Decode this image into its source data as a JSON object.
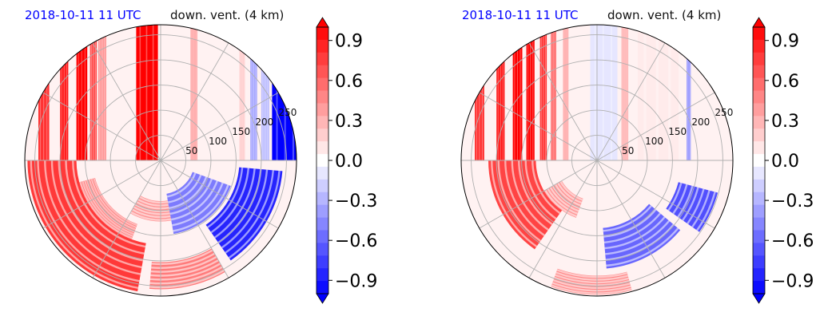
{
  "chart_data": [
    {
      "type": "heatmap",
      "projection": "polar",
      "title_left": "2018-10-11 11 UTC",
      "title_right": "down. vent. (4 km)",
      "radial_ticks": [
        50,
        100,
        150,
        200,
        250
      ],
      "radial_max": 270,
      "angular_gridlines_deg": [
        0,
        30,
        60,
        90,
        120,
        150,
        180,
        210,
        240,
        270,
        300,
        330
      ],
      "colorbar": {
        "ticks": [
          "0.9",
          "0.6",
          "0.3",
          "0.0",
          "−0.3",
          "−0.6",
          "−0.9"
        ],
        "range": [
          -1.0,
          1.0
        ],
        "levels": 21,
        "colormap": "bwr",
        "extend": "both"
      },
      "upper_stripes": [
        {
          "x": -0.9,
          "w": 0.08,
          "v": 0.8
        },
        {
          "x": -0.74,
          "w": 0.06,
          "v": 0.9
        },
        {
          "x": -0.62,
          "w": 0.08,
          "v": 1.0
        },
        {
          "x": -0.52,
          "w": 0.05,
          "v": 0.7
        },
        {
          "x": -0.46,
          "w": 0.06,
          "v": 0.4
        },
        {
          "x": -0.18,
          "w": 0.16,
          "v": 1.0
        },
        {
          "x": 0.22,
          "w": 0.05,
          "v": 0.35
        },
        {
          "x": 0.58,
          "w": 0.04,
          "v": 0.2
        },
        {
          "x": 0.66,
          "w": 0.05,
          "v": -0.35
        },
        {
          "x": 0.74,
          "w": 0.06,
          "v": -0.25
        },
        {
          "x": 0.82,
          "w": 0.2,
          "v": -1.0
        }
      ],
      "lower_bands": [
        {
          "r0": 0.62,
          "r1": 0.98,
          "a0": 100,
          "a1": 180,
          "v": 0.9
        },
        {
          "r0": 0.5,
          "r1": 0.62,
          "a0": 110,
          "a1": 165,
          "v": 0.7
        },
        {
          "r0": 0.3,
          "r1": 0.45,
          "a0": 80,
          "a1": 120,
          "v": 0.5
        },
        {
          "r0": 0.25,
          "r1": 0.55,
          "a0": 20,
          "a1": 80,
          "v": -0.6
        },
        {
          "r0": 0.58,
          "r1": 0.9,
          "a0": 5,
          "a1": 55,
          "v": -1.0
        },
        {
          "r0": 0.75,
          "r1": 0.95,
          "a0": 60,
          "a1": 95,
          "v": 0.6
        }
      ]
    },
    {
      "type": "heatmap",
      "projection": "polar",
      "title_left": "2018-10-11 11 UTC",
      "title_right": "down. vent. (4 km)",
      "radial_ticks": [
        50,
        100,
        150,
        200,
        250
      ],
      "radial_max": 270,
      "angular_gridlines_deg": [
        0,
        30,
        60,
        90,
        120,
        150,
        180,
        210,
        240,
        270,
        300,
        330
      ],
      "colorbar": {
        "ticks": [
          "0.9",
          "0.6",
          "0.3",
          "0.0",
          "−0.3",
          "−0.6",
          "−0.9"
        ],
        "range": [
          -1.0,
          1.0
        ],
        "levels": 21,
        "colormap": "bwr",
        "extend": "both"
      },
      "upper_stripes": [
        {
          "x": -0.9,
          "w": 0.07,
          "v": 0.8
        },
        {
          "x": -0.74,
          "w": 0.06,
          "v": 0.9
        },
        {
          "x": -0.62,
          "w": 0.07,
          "v": 1.0
        },
        {
          "x": -0.52,
          "w": 0.06,
          "v": 1.0
        },
        {
          "x": -0.42,
          "w": 0.05,
          "v": 0.8
        },
        {
          "x": -0.34,
          "w": 0.04,
          "v": 0.6
        },
        {
          "x": -0.25,
          "w": 0.04,
          "v": 0.35
        },
        {
          "x": -0.05,
          "w": 0.2,
          "v": -0.1
        },
        {
          "x": 0.18,
          "w": 0.05,
          "v": 0.3
        },
        {
          "x": 0.66,
          "w": 0.03,
          "v": -0.45
        },
        {
          "x": 0.3,
          "w": 0.3,
          "v": 0.08
        }
      ],
      "lower_bands": [
        {
          "r0": 0.45,
          "r1": 0.8,
          "a0": 125,
          "a1": 180,
          "v": 0.85
        },
        {
          "r0": 0.3,
          "r1": 0.45,
          "a0": 110,
          "a1": 150,
          "v": 0.5
        },
        {
          "r0": 0.5,
          "r1": 0.8,
          "a0": 40,
          "a1": 85,
          "v": -0.7
        },
        {
          "r0": 0.62,
          "r1": 0.92,
          "a0": 15,
          "a1": 35,
          "v": -0.8
        },
        {
          "r0": 0.85,
          "r1": 0.99,
          "a0": 75,
          "a1": 110,
          "v": 0.55
        }
      ]
    }
  ]
}
